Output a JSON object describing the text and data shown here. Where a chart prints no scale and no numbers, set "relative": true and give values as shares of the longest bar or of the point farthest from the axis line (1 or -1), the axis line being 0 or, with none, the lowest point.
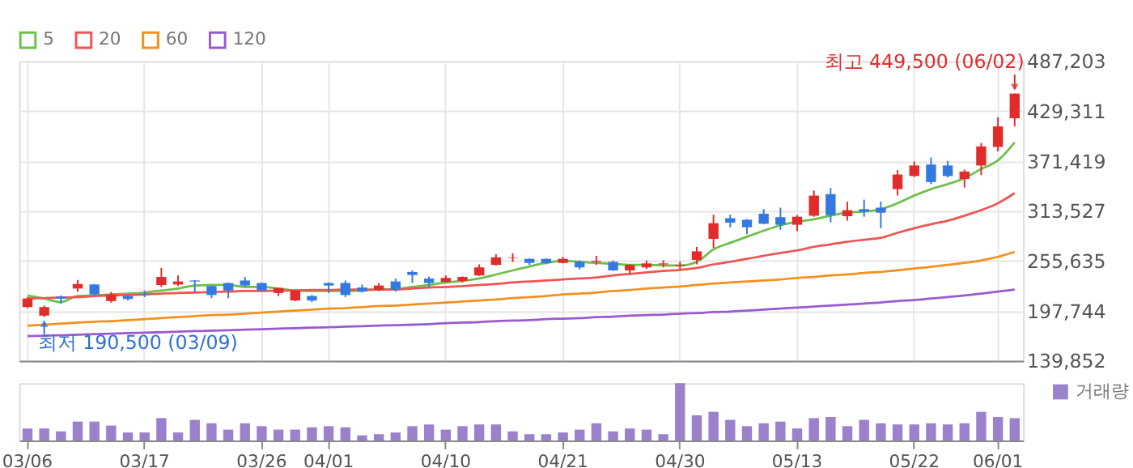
{
  "chart_data": [
    {
      "type": "candlestick",
      "categories": [
        null,
        null,
        null,
        null,
        null,
        null,
        null,
        null,
        null,
        null,
        null,
        null,
        null,
        null,
        null,
        null,
        null,
        null,
        null,
        null,
        null,
        null,
        null,
        null,
        null,
        null,
        null,
        null,
        null,
        null,
        null,
        null,
        null,
        null,
        null,
        null,
        null,
        null,
        null,
        null,
        null,
        null,
        null,
        null,
        null,
        null,
        null,
        null,
        null,
        null,
        null,
        null,
        null,
        null,
        null,
        null,
        null,
        null,
        null,
        null
      ],
      "ohlc": [
        [
          202100,
          213700,
          200900,
          212000
        ],
        [
          192200,
          203900,
          190500,
          202100
        ],
        [
          214300,
          215500,
          206200,
          212000
        ],
        [
          223600,
          233500,
          219600,
          228900
        ],
        [
          228300,
          228900,
          215500,
          216700
        ],
        [
          209100,
          219600,
          207300,
          216700
        ],
        [
          214900,
          216700,
          209700,
          211400
        ],
        [
          217200,
          221300,
          213700,
          216100
        ],
        [
          227700,
          247500,
          225400,
          237000
        ],
        [
          228300,
          238800,
          226500,
          231800
        ],
        [
          232900,
          233500,
          219600,
          231800
        ],
        [
          226500,
          227100,
          212600,
          216100
        ],
        [
          230000,
          230600,
          212600,
          221300
        ],
        [
          232900,
          237000,
          225400,
          227100
        ],
        [
          230000,
          230600,
          220700,
          221300
        ],
        [
          218400,
          224800,
          214900,
          224200
        ],
        [
          209700,
          221900,
          209100,
          221300
        ],
        [
          214900,
          216100,
          207900,
          209700
        ],
        [
          230000,
          230600,
          218400,
          227100
        ],
        [
          230000,
          232900,
          213700,
          216100
        ],
        [
          224800,
          228300,
          219000,
          220100
        ],
        [
          221900,
          230000,
          220700,
          227100
        ],
        [
          231800,
          235300,
          220100,
          222500
        ],
        [
          242800,
          244600,
          230000,
          239300
        ],
        [
          235300,
          237600,
          224200,
          230000
        ],
        [
          231200,
          238800,
          230600,
          235900
        ],
        [
          232400,
          237600,
          230600,
          237000
        ],
        [
          238800,
          251600,
          238200,
          248100
        ],
        [
          251000,
          263200,
          250400,
          259700
        ],
        [
          259100,
          264400,
          254500,
          259700
        ],
        [
          258000,
          258500,
          251000,
          253300
        ],
        [
          258000,
          258500,
          251600,
          253300
        ],
        [
          253300,
          260300,
          252700,
          258000
        ],
        [
          254500,
          256200,
          245700,
          248100
        ],
        [
          254500,
          261500,
          251000,
          255600
        ],
        [
          254500,
          256200,
          244000,
          244600
        ],
        [
          244600,
          251600,
          239900,
          251000
        ],
        [
          248100,
          256200,
          246300,
          252700
        ],
        [
          251600,
          256200,
          248100,
          252700
        ],
        [
          249800,
          255000,
          246300,
          251000
        ],
        [
          256800,
          271900,
          251600,
          266700
        ],
        [
          281200,
          309200,
          270800,
          299300
        ],
        [
          305100,
          309200,
          294600,
          299900
        ],
        [
          303300,
          303900,
          286500,
          294600
        ],
        [
          310300,
          315600,
          298100,
          298700
        ],
        [
          306300,
          317300,
          291700,
          297500
        ],
        [
          297500,
          308600,
          290000,
          306800
        ],
        [
          308000,
          337100,
          306800,
          331300
        ],
        [
          333000,
          340000,
          300400,
          308600
        ],
        [
          307400,
          324300,
          302200,
          314400
        ],
        [
          315600,
          326600,
          306800,
          312700
        ],
        [
          317300,
          324300,
          293500,
          311500
        ],
        [
          338800,
          360900,
          331300,
          355700
        ],
        [
          354000,
          370800,
          352800,
          366200
        ],
        [
          367300,
          375500,
          344700,
          347000
        ],
        [
          366200,
          371400,
          352200,
          354000
        ],
        [
          350500,
          361500,
          340600,
          359200
        ],
        [
          366200,
          392300,
          355100,
          388300
        ],
        [
          387700,
          422000,
          382500,
          411500
        ],
        [
          420900,
          449500,
          411600,
          449500
        ]
      ],
      "colors": [
        "#e12c2c",
        "#e12c2c",
        "#3379e0",
        "#e12c2c",
        "#3379e0",
        "#e12c2c",
        "#3379e0",
        "#3379e0",
        "#e12c2c",
        "#e12c2c",
        "#3379e0",
        "#3379e0",
        "#3379e0",
        "#3379e0",
        "#3379e0",
        "#e12c2c",
        "#e12c2c",
        "#3379e0",
        "#3379e0",
        "#3379e0",
        "#3379e0",
        "#e12c2c",
        "#3379e0",
        "#3379e0",
        "#3379e0",
        "#e12c2c",
        "#e12c2c",
        "#e12c2c",
        "#e12c2c",
        "#e12c2c",
        "#3379e0",
        "#3379e0",
        "#e12c2c",
        "#3379e0",
        "#e12c2c",
        "#3379e0",
        "#e12c2c",
        "#e12c2c",
        "#e12c2c",
        "#e12c2c",
        "#e12c2c",
        "#e12c2c",
        "#3379e0",
        "#3379e0",
        "#3379e0",
        "#3379e0",
        "#e12c2c",
        "#e12c2c",
        "#3379e0",
        "#e12c2c",
        "#3379e0",
        "#3379e0",
        "#e12c2c",
        "#e12c2c",
        "#3379e0",
        "#3379e0",
        "#e12c2c",
        "#e12c2c",
        "#e12c2c",
        "#e12c2c"
      ],
      "series": [
        {
          "name": "5",
          "type": "line",
          "color": "#6cc04a",
          "values": [
            215500,
            212000,
            207900,
            214900,
            215500,
            216700,
            217800,
            219000,
            221300,
            223600,
            227100,
            227700,
            227700,
            225400,
            225400,
            223600,
            221300,
            220700,
            220700,
            220700,
            221300,
            222500,
            223100,
            225400,
            227700,
            230600,
            232400,
            235300,
            239900,
            244600,
            249200,
            253300,
            255600,
            254500,
            253300,
            252100,
            251000,
            251000,
            250400,
            250400,
            254500,
            269000,
            276600,
            283600,
            290500,
            296900,
            301000,
            303900,
            308000,
            311500,
            312700,
            315600,
            322500,
            331300,
            338800,
            344600,
            351600,
            362100,
            372000,
            392900
          ]
        },
        {
          "name": "20",
          "type": "line",
          "color": "#ee5555",
          "values": [
            212000,
            212600,
            213200,
            213700,
            214900,
            215500,
            216100,
            216700,
            217800,
            218400,
            219000,
            219600,
            220100,
            220700,
            220700,
            221300,
            221300,
            221900,
            221900,
            222500,
            222500,
            222500,
            222500,
            223600,
            224800,
            225400,
            226500,
            227700,
            228900,
            230600,
            231800,
            232900,
            234100,
            235300,
            236400,
            238800,
            240500,
            242300,
            244000,
            245200,
            247500,
            251600,
            254500,
            258000,
            261500,
            264900,
            267800,
            271900,
            274800,
            277700,
            280100,
            282400,
            288200,
            293500,
            298100,
            302200,
            308000,
            314400,
            322500,
            334200
          ]
        },
        {
          "name": "60",
          "type": "line",
          "color": "#f5901e",
          "values": [
            180600,
            181700,
            182900,
            184100,
            185200,
            185800,
            187000,
            188100,
            189300,
            190500,
            191600,
            192800,
            193400,
            194600,
            195700,
            196900,
            198000,
            199200,
            200400,
            200900,
            202100,
            203300,
            203800,
            205000,
            206200,
            207300,
            208500,
            209700,
            210800,
            212600,
            213700,
            214900,
            216700,
            217800,
            219000,
            220700,
            221900,
            223600,
            224800,
            225900,
            227700,
            229400,
            230600,
            231800,
            232900,
            234100,
            235800,
            237000,
            238800,
            239900,
            241700,
            242800,
            244600,
            246900,
            248700,
            251000,
            253300,
            256200,
            260300,
            266100
          ]
        },
        {
          "name": "120",
          "type": "line",
          "color": "#9b59d0",
          "values": [
            168400,
            168900,
            169500,
            170100,
            170700,
            171300,
            171900,
            172400,
            173000,
            173600,
            174200,
            174800,
            175300,
            175900,
            176500,
            177100,
            177700,
            178200,
            178800,
            179400,
            180000,
            180600,
            181200,
            181700,
            182300,
            183500,
            184100,
            184700,
            185800,
            186400,
            187000,
            188100,
            188700,
            189300,
            190500,
            191000,
            192200,
            192800,
            193400,
            194600,
            195100,
            196300,
            196900,
            198000,
            199200,
            200400,
            201500,
            202700,
            203900,
            205000,
            206200,
            207300,
            209100,
            210300,
            212000,
            213700,
            215500,
            217800,
            220100,
            222500
          ]
        }
      ],
      "ylim": [
        139852,
        487203
      ],
      "yticks": [
        {
          "value": 139852,
          "label": "139,852"
        },
        {
          "value": 197744,
          "label": "197,744"
        },
        {
          "value": 255635,
          "label": "255,635"
        },
        {
          "value": 313527,
          "label": "313,527"
        },
        {
          "value": 371419,
          "label": "371,419"
        },
        {
          "value": 429311,
          "label": "429,311"
        },
        {
          "value": 487203,
          "label": "487,203"
        }
      ],
      "grid": true,
      "legend": "top left",
      "tick_labels": "y",
      "annotations": [
        "최고 449,500 (06/02)",
        {
          "text": "최저 190,500 (03/09)",
          "y": 190500
        }
      ]
    },
    {
      "type": "bar",
      "categories": [
        "03/06",
        null,
        null,
        null,
        null,
        null,
        null,
        "03/17",
        null,
        null,
        null,
        null,
        null,
        null,
        "03/26",
        null,
        null,
        null,
        "04/01",
        null,
        null,
        null,
        null,
        null,
        null,
        "04/10",
        null,
        null,
        null,
        null,
        null,
        null,
        "04/21",
        null,
        null,
        null,
        null,
        null,
        null,
        "04/30",
        null,
        null,
        null,
        null,
        null,
        null,
        "05/13",
        null,
        null,
        null,
        null,
        null,
        null,
        "05/22",
        null,
        null,
        null,
        null,
        "06/01",
        null
      ],
      "relative": true,
      "legend": "right",
      "tick_labels": "x",
      "series": [
        {
          "name": "거래량",
          "color": "#9b80cc",
          "values": [
            0.21,
            0.21,
            0.16,
            0.33,
            0.33,
            0.26,
            0.14,
            0.14,
            0.39,
            0.14,
            0.36,
            0.3,
            0.19,
            0.3,
            0.25,
            0.19,
            0.19,
            0.23,
            0.25,
            0.23,
            0.09,
            0.11,
            0.14,
            0.25,
            0.28,
            0.19,
            0.25,
            0.28,
            0.28,
            0.16,
            0.11,
            0.11,
            0.14,
            0.19,
            0.3,
            0.16,
            0.21,
            0.19,
            0.11,
            1,
            0.44,
            0.5,
            0.36,
            0.25,
            0.3,
            0.33,
            0.21,
            0.39,
            0.41,
            0.25,
            0.36,
            0.3,
            0.28,
            0.28,
            0.3,
            0.28,
            0.3,
            0.5,
            0.41,
            0.39
          ]
        }
      ]
    }
  ]
}
